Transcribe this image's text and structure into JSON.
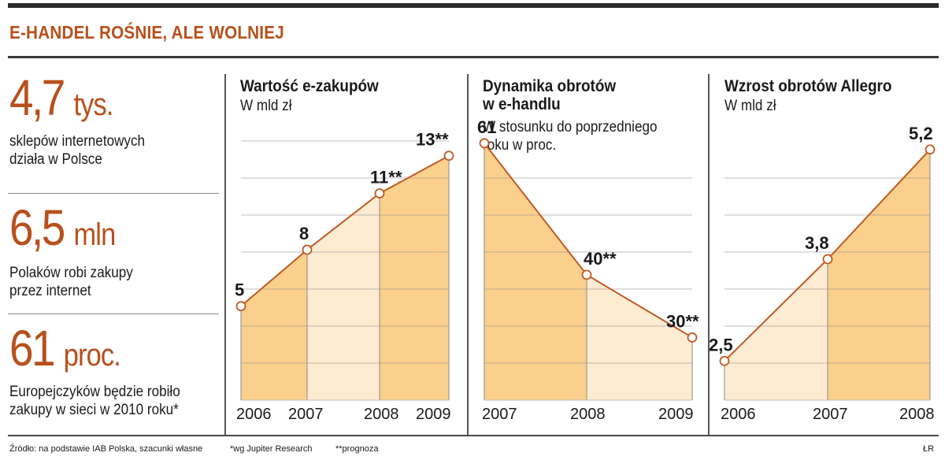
{
  "headline": "E-HANDEL ROŚNIE, ALE WOLNIEJ",
  "stats": [
    {
      "value": "4,7",
      "unit": "tys.",
      "desc_line1": "sklepów internetowych",
      "desc_line2": "działa w Polsce"
    },
    {
      "value": "6,5",
      "unit": "mln",
      "desc_line1": "Polaków robi zakupy",
      "desc_line2": "przez internet"
    },
    {
      "value": "61",
      "unit": "proc.",
      "desc_line1": "Europejczyków będzie robiło",
      "desc_line2": "zakupy w sieci w 2010 roku*"
    }
  ],
  "panels": [
    {
      "title_line1": "Wartość e-zakupów",
      "title_line2": "",
      "sub_line1": "W mld zł",
      "sub_line2": ""
    },
    {
      "title_line1": "Dynamika obrotów",
      "title_line2": "w e-handlu",
      "sub_line1": "W stosunku do poprzedniego",
      "sub_line2": "roku w proc."
    },
    {
      "title_line1": "Wzrost obrotów Allegro",
      "title_line2": "",
      "sub_line1": "W mld zł",
      "sub_line2": ""
    }
  ],
  "chart_data": [
    {
      "type": "area",
      "title": "Wartość e-zakupów",
      "subtitle": "W mld zł",
      "categories": [
        "2006",
        "2007",
        "2008",
        "2009"
      ],
      "values": [
        5,
        8,
        11,
        13
      ],
      "labels": [
        "5",
        "8",
        "11**",
        "13**"
      ],
      "ylim": [
        0,
        15
      ],
      "grid": true
    },
    {
      "type": "area",
      "title": "Dynamika obrotów w e-handlu",
      "subtitle": "W stosunku do poprzedniego roku w proc.",
      "categories": [
        "2007",
        "2008",
        "2009"
      ],
      "values": [
        61,
        40,
        30
      ],
      "labels": [
        "61",
        "40**",
        "30**"
      ],
      "ylim": [
        20,
        65
      ],
      "grid": true
    },
    {
      "type": "area",
      "title": "Wzrost obrotów Allegro",
      "subtitle": "W mld zł",
      "categories": [
        "2006",
        "2007",
        "2008"
      ],
      "values": [
        2.5,
        3.8,
        5.2
      ],
      "labels": [
        "2,5",
        "3,8",
        "5,2"
      ],
      "ylim": [
        2.0,
        5.6
      ],
      "grid": true
    }
  ],
  "colors": {
    "accent": "#b8501c",
    "fill_dark": "#fbd08c",
    "fill_light": "#fdecd2",
    "grid": "#8a8a8a",
    "line": "#c05a24"
  },
  "footer": {
    "source": "Źródło: na podstawie IAB Polska, szacunki własne",
    "note1": "*wg Jupiter Research",
    "note2": "**prognoza",
    "credit": "ŁR"
  }
}
